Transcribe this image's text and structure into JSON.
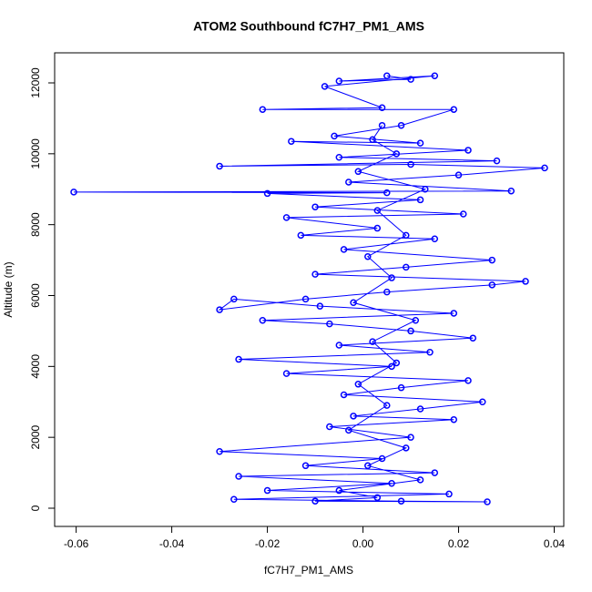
{
  "chart_data": {
    "type": "scatter",
    "lines": true,
    "title": "ATOM2 Southbound fC7H7_PM1_AMS",
    "x_label": "fC7H7_PM1_AMS",
    "y_label": "Altitude (m)",
    "color": "#0000ff",
    "grid": false,
    "xlim": [
      -0.0645,
      0.042
    ],
    "ylim": [
      -514,
      12848
    ],
    "xticks": [
      -0.06,
      -0.04,
      -0.02,
      {
        "value": 0,
        "label": "0.00"
      },
      0.02,
      0.04
    ],
    "yticks": [
      0,
      2000,
      4000,
      6000,
      8000,
      10000,
      12000
    ],
    "series": [
      {
        "name": "fC7H7_PM1_AMS",
        "x": [
          0.005,
          0.01,
          -0.005,
          0.015,
          -0.008,
          0.004,
          -0.021,
          0.019,
          0.008,
          -0.006,
          0.012,
          -0.015,
          0.022,
          -0.005,
          0.028,
          -0.03,
          0.01,
          0.038,
          0.02,
          -0.003,
          0.031,
          -0.0605,
          0.005,
          -0.02,
          0.012,
          -0.01,
          0.021,
          -0.016,
          0.003,
          -0.013,
          0.015,
          -0.004,
          0.027,
          0.009,
          -0.01,
          0.034,
          0.027,
          0.005,
          -0.012,
          -0.03,
          -0.027,
          -0.009,
          0.019,
          -0.021,
          -0.007,
          0.01,
          0.023,
          -0.005,
          0.014,
          -0.026,
          0.006,
          -0.016,
          0.022,
          0.008,
          -0.004,
          0.025,
          0.012,
          -0.002,
          0.019,
          -0.007,
          0.01,
          -0.03,
          0.004,
          -0.012,
          0.015,
          -0.026,
          0.006,
          -0.02,
          0.018,
          -0.027,
          0.008,
          0.026,
          -0.01,
          0.003,
          -0.005,
          0.012,
          0.001,
          0.009,
          -0.003,
          0.005,
          -0.001,
          0.007,
          0.002,
          0.011,
          -0.002,
          0.006,
          0.001,
          0.009,
          0.003,
          0.013,
          -0.001,
          0.007,
          0.002,
          0.004
        ],
        "y": [
          12200,
          12100,
          12050,
          12200,
          11900,
          11300,
          11250,
          11250,
          10800,
          10500,
          10300,
          10350,
          10100,
          9900,
          9800,
          9650,
          9700,
          9600,
          9400,
          9200,
          8950,
          8920,
          8900,
          8880,
          8700,
          8500,
          8300,
          8200,
          7900,
          7700,
          7600,
          7300,
          7000,
          6800,
          6600,
          6400,
          6300,
          6100,
          5900,
          5600,
          5900,
          5700,
          5500,
          5300,
          5200,
          5000,
          4800,
          4600,
          4400,
          4200,
          4000,
          3800,
          3600,
          3400,
          3200,
          3000,
          2800,
          2600,
          2500,
          2300,
          2000,
          1600,
          1400,
          1200,
          1000,
          900,
          700,
          500,
          400,
          250,
          200,
          180,
          200,
          300,
          500,
          800,
          1200,
          1700,
          2200,
          2900,
          3500,
          4100,
          4700,
          5300,
          5800,
          6500,
          7100,
          7700,
          8400,
          9000,
          9500,
          10000,
          10400,
          10800
        ]
      }
    ]
  }
}
